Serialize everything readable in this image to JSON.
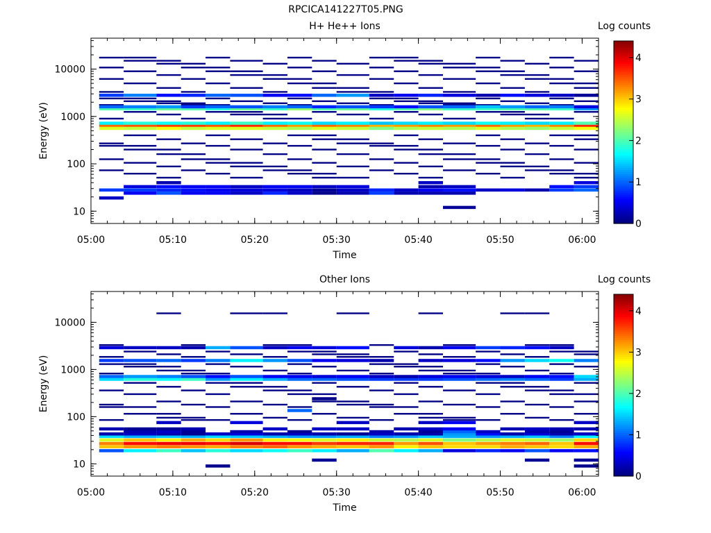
{
  "page_title": "RPCICA141227T05.PNG",
  "chart_data": [
    {
      "type": "heatmap",
      "title": "H+ He++ Ions",
      "xlabel": "Time",
      "ylabel": "Energy (eV)",
      "colorbar_label": "Log counts",
      "y_scale": "log",
      "ylim": [
        5.5,
        45000
      ],
      "xlim": [
        "05:00",
        "06:02"
      ],
      "x_ticks": [
        "05:00",
        "05:10",
        "05:20",
        "05:30",
        "05:40",
        "05:50",
        "06:00"
      ],
      "y_ticks": [
        "10",
        "100",
        "1000",
        "10000"
      ],
      "colorbar_ticks": [
        "0",
        "1",
        "2",
        "3",
        "4"
      ],
      "colorbar_range": [
        0,
        4.4
      ],
      "column_starts": [
        "05:01",
        "05:04",
        "05:08",
        "05:11",
        "05:14",
        "05:17",
        "05:21",
        "05:24",
        "05:27",
        "05:30",
        "05:34",
        "05:37",
        "05:40",
        "05:43",
        "05:47",
        "05:50",
        "05:53",
        "05:56",
        "05:59"
      ],
      "column_end": "06:02",
      "bands": [
        {
          "energy_eV": 630,
          "values": [
            3.4,
            3.5,
            3.6,
            3.6,
            3.5,
            3.7,
            3.4,
            3.2,
            3.4,
            3.3,
            3.1,
            3.2,
            3.3,
            3.2,
            3.4,
            3.2,
            3.1,
            3.3,
            3.7
          ]
        },
        {
          "energy_eV": 560,
          "values": [
            2.6,
            2.5,
            2.7,
            2.5,
            2.6,
            2.6,
            2.5,
            2.4,
            2.6,
            2.5,
            2.2,
            2.4,
            2.5,
            2.4,
            2.6,
            2.4,
            2.3,
            2.5,
            2.7
          ]
        },
        {
          "energy_eV": 720,
          "values": [
            1.6,
            1.8,
            1.7,
            1.8,
            1.6,
            1.9,
            1.6,
            1.7,
            1.5,
            1.6,
            1.4,
            1.5,
            1.6,
            1.5,
            1.7,
            1.6,
            1.5,
            1.6,
            2.0
          ]
        },
        {
          "energy_eV": 1450,
          "values": [
            2.0,
            1.9,
            2.1,
            2.0,
            1.8,
            2.1,
            1.9,
            2.3,
            2.0,
            2.1,
            1.8,
            2.0,
            2.2,
            1.9,
            1.9,
            2.0,
            2.0,
            1.9,
            1.2
          ]
        },
        {
          "energy_eV": 1600,
          "values": [
            1.0,
            1.1,
            1.2,
            0.8,
            1.0,
            0.9,
            1.1,
            1.0,
            0.7,
            0.9,
            0.8,
            0.6,
            0.9,
            1.0,
            1.4,
            1.2,
            1.0,
            1.1,
            0.4
          ]
        },
        {
          "energy_eV": 2800,
          "values": [
            0.8,
            1.1,
            0.6,
            0.7,
            1.0,
            0.9,
            0.5,
            0.6,
            1.0,
            1.2,
            0.3,
            0.5,
            0.7,
            0.4,
            0.2,
            0.6,
            0.4,
            0.3,
            0.1
          ]
        },
        {
          "energy_eV": 28,
          "values": [
            0.8,
            0.8,
            0.7,
            0.6,
            0.5,
            0.4,
            0.4,
            0.3,
            0.1,
            0.3,
            0.7,
            0.3,
            0.5,
            0.6,
            0.3,
            0.4,
            0.2,
            0.8,
            1.0
          ]
        },
        {
          "energy_eV": 24,
          "values": [
            0,
            0.5,
            0.9,
            0.5,
            0.5,
            0.3,
            0.7,
            0.3,
            0.05,
            0.2,
            0.8,
            0.2,
            0.2,
            0.2,
            0.0,
            0.0,
            0.0,
            0.0,
            0.0
          ]
        },
        {
          "energy_eV": 33,
          "values": [
            0.0,
            0.4,
            0.6,
            0.5,
            0.5,
            0.3,
            0.5,
            0.5,
            0.3,
            0.4,
            0.0,
            0.0,
            0.2,
            0.3,
            0.0,
            0.0,
            0.0,
            0.6,
            0.8
          ]
        },
        {
          "energy_eV": 40,
          "values": [
            0.0,
            0.0,
            0.2,
            0.0,
            0.0,
            0.0,
            0.0,
            0.0,
            0.0,
            0.0,
            0.0,
            0.0,
            0.3,
            0.0,
            0.0,
            0.0,
            0.0,
            0.0,
            0.4
          ]
        },
        {
          "energy_eV": 19,
          "values": [
            0.3,
            0,
            0,
            0,
            0,
            0,
            0,
            0,
            0,
            0,
            0,
            0,
            0,
            0,
            0,
            0,
            0,
            0,
            0
          ]
        },
        {
          "energy_eV": 12,
          "values": [
            0,
            0,
            0,
            0,
            0,
            0,
            0,
            0,
            0,
            0,
            0,
            0,
            0,
            0.1,
            0,
            0,
            0,
            0,
            0
          ]
        }
      ],
      "sparse_energies_eV": [
        17500,
        15000,
        13000,
        10800,
        9000,
        7500,
        6200,
        5000,
        4000,
        3300,
        2400,
        2100,
        1900,
        1750,
        1250,
        1100,
        900,
        400,
        330,
        270,
        240,
        200,
        160,
        125,
        105,
        88,
        73,
        62,
        51
      ]
    },
    {
      "type": "heatmap",
      "title": "Other Ions",
      "xlabel": "Time",
      "ylabel": "Energy (eV)",
      "colorbar_label": "Log counts",
      "y_scale": "log",
      "ylim": [
        5.5,
        45000
      ],
      "xlim": [
        "05:00",
        "06:02"
      ],
      "x_ticks": [
        "05:00",
        "05:10",
        "05:20",
        "05:30",
        "05:40",
        "05:50",
        "06:00"
      ],
      "y_ticks": [
        "10",
        "100",
        "1000",
        "10000"
      ],
      "colorbar_ticks": [
        "0",
        "1",
        "2",
        "3",
        "4"
      ],
      "colorbar_range": [
        0,
        4.4
      ],
      "column_starts": [
        "05:01",
        "05:04",
        "05:08",
        "05:11",
        "05:14",
        "05:17",
        "05:21",
        "05:24",
        "05:27",
        "05:30",
        "05:34",
        "05:37",
        "05:40",
        "05:43",
        "05:47",
        "05:50",
        "05:53",
        "05:56",
        "05:59"
      ],
      "column_end": "06:02",
      "bands": [
        {
          "energy_eV": 27,
          "values": [
            3.3,
            3.8,
            3.9,
            3.9,
            3.8,
            4.0,
            3.8,
            3.8,
            3.6,
            3.7,
            3.7,
            3.2,
            3.5,
            3.0,
            3.2,
            3.3,
            3.4,
            3.0,
            3.8
          ]
        },
        {
          "energy_eV": 23,
          "values": [
            3.0,
            3.2,
            3.3,
            3.2,
            3.1,
            3.3,
            3.4,
            3.2,
            3.1,
            3.0,
            3.2,
            2.8,
            3.0,
            2.9,
            2.9,
            3.1,
            3.0,
            2.9,
            3.1
          ]
        },
        {
          "energy_eV": 32,
          "values": [
            2.6,
            3.0,
            2.8,
            3.1,
            2.9,
            3.2,
            2.8,
            2.7,
            2.6,
            2.8,
            2.5,
            2.4,
            2.6,
            2.2,
            2.4,
            2.6,
            2.5,
            2.3,
            2.9
          ]
        },
        {
          "energy_eV": 19,
          "values": [
            0.9,
            1.6,
            1.9,
            1.4,
            1.8,
            1.5,
            1.7,
            1.9,
            1.6,
            1.3,
            2.0,
            1.6,
            1.3,
            0.4,
            0.7,
            0.5,
            0.9,
            0.5,
            0.6
          ]
        },
        {
          "energy_eV": 38,
          "values": [
            1.5,
            1.3,
            1.4,
            1.3,
            1.5,
            1.4,
            1.3,
            1.2,
            1.2,
            1.3,
            1.1,
            1.2,
            1.4,
            1.3,
            1.2,
            1.3,
            1.4,
            1.1,
            1.6
          ]
        },
        {
          "energy_eV": 43,
          "values": [
            0.2,
            0.3,
            0.2,
            0.1,
            0.3,
            0.4,
            0.2,
            0.3,
            0.2,
            0.1,
            0.3,
            0.2,
            0.2,
            1.2,
            0.6,
            0.2,
            0.4,
            0.2,
            0.3
          ]
        },
        {
          "energy_eV": 48,
          "values": [
            0,
            0.2,
            0.3,
            0.1,
            0,
            0.2,
            0,
            0.1,
            0,
            0,
            0.2,
            0,
            0.1,
            1.0,
            0.3,
            0,
            0.2,
            0.1,
            0
          ]
        },
        {
          "energy_eV": 55,
          "values": [
            0.2,
            0.1,
            0.1,
            0.2,
            0,
            0,
            0.3,
            0,
            0.3,
            0.3,
            0,
            0.2,
            0.3,
            0.5,
            0,
            0.2,
            0.3,
            0.2,
            0.2
          ]
        },
        {
          "energy_eV": 75,
          "values": [
            0,
            0,
            0.3,
            0,
            0,
            0.4,
            0,
            0,
            0,
            0.3,
            0,
            0,
            0.3,
            0.5,
            0,
            0,
            0,
            0,
            0.3
          ]
        },
        {
          "energy_eV": 620,
          "values": [
            1.5,
            1.8,
            1.7,
            1.9,
            1.2,
            1.6,
            1.3,
            1.0,
            1.0,
            0.9,
            0.8,
            0.8,
            0.8,
            0.9,
            1.0,
            1.1,
            1.0,
            0.8,
            1.3
          ]
        },
        {
          "energy_eV": 710,
          "values": [
            1.0,
            1.2,
            1.1,
            0.9,
            0.6,
            0.9,
            0.5,
            0.5,
            0.4,
            0.5,
            0.3,
            0.2,
            0.4,
            0.5,
            0.4,
            0.3,
            0.5,
            0.6,
            1.5
          ]
        },
        {
          "energy_eV": 1550,
          "values": [
            0.8,
            0.9,
            1.0,
            0.8,
            1.1,
            1.6,
            1.2,
            0.9,
            0.5,
            0.4,
            0.2,
            0,
            0.3,
            0.4,
            0.6,
            1.2,
            1.5,
            1.7,
            1.1
          ]
        },
        {
          "energy_eV": 2900,
          "values": [
            0.4,
            0.3,
            0.3,
            0.2,
            1.3,
            0.9,
            0.3,
            0.5,
            0.4,
            0.6,
            0,
            0.4,
            0.2,
            0.5,
            0.8,
            0.7,
            0.6,
            0.3,
            0
          ]
        },
        {
          "energy_eV": 240,
          "values": [
            0,
            0,
            0,
            0,
            0,
            0,
            0,
            0,
            0.05,
            0,
            0,
            0,
            0,
            0,
            0,
            0,
            0,
            0,
            0
          ]
        },
        {
          "energy_eV": 135,
          "values": [
            0,
            0,
            0,
            0,
            0,
            0,
            0,
            1.0,
            0,
            0,
            0,
            0,
            0,
            0,
            0,
            0,
            0,
            0,
            0
          ]
        },
        {
          "energy_eV": 12,
          "values": [
            0,
            0,
            0,
            0,
            0,
            0,
            0,
            0,
            0.1,
            0,
            0,
            0,
            0,
            0,
            0,
            0,
            0.1,
            0,
            0.1
          ]
        },
        {
          "energy_eV": 9,
          "values": [
            0,
            0,
            0,
            0,
            0.05,
            0,
            0,
            0,
            0,
            0,
            0,
            0,
            0,
            0,
            0,
            0,
            0,
            0,
            0.05
          ]
        }
      ],
      "sparse_energies_eV": [
        15500,
        3300,
        2400,
        2100,
        1850,
        1300,
        1150,
        950,
        820,
        520,
        430,
        360,
        300,
        210,
        180,
        160,
        115,
        95,
        85
      ]
    }
  ]
}
